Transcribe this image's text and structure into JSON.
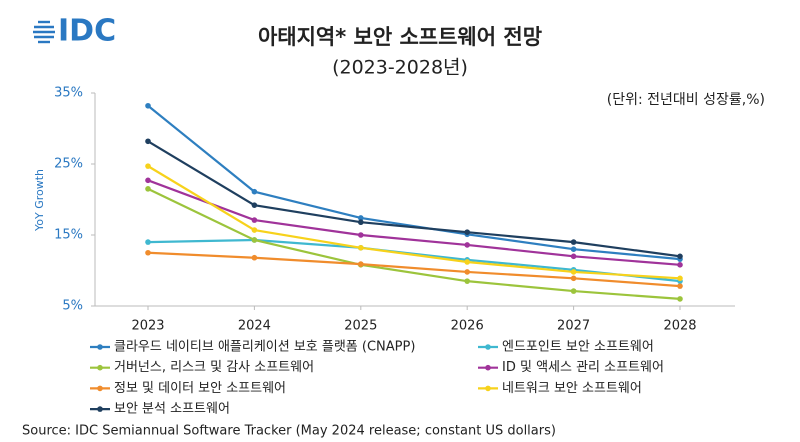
{
  "logo": "IDC",
  "chart_data": {
    "type": "line",
    "title": "아태지역* 보안 소프트웨어 전망",
    "subtitle": "(2023-2028년)",
    "unit_note": "(단위: 전년대비 성장률,%)",
    "y_label": "YoY Growth",
    "source": "Source:  IDC Semiannual Software Tracker (May 2024 release; constant US dollars)",
    "categories": [
      "2023",
      "2024",
      "2025",
      "2026",
      "2027",
      "2028"
    ],
    "ylim": [
      5,
      35
    ],
    "yticks": [
      {
        "value": 5,
        "label": "5%"
      },
      {
        "value": 15,
        "label": "15%"
      },
      {
        "value": 25,
        "label": "25%"
      },
      {
        "value": 35,
        "label": "35%"
      }
    ],
    "series": [
      {
        "name": "클라우드 네이티브 애플리케이션 보호 플랫폼 (CNAPP)",
        "color": "#2e7fc0",
        "values": [
          33.2,
          21.1,
          17.4,
          15.1,
          13,
          11.6
        ]
      },
      {
        "name": "엔드포인트 보안 소프트웨어",
        "color": "#3fb8d0",
        "values": [
          14,
          14.3,
          13.2,
          11.5,
          10.1,
          8.5
        ]
      },
      {
        "name": "거버넌스, 리스크 및 감사 소프트웨어",
        "color": "#9cc43c",
        "values": [
          21.5,
          14.3,
          10.8,
          8.5,
          7.1,
          6
        ]
      },
      {
        "name": "ID 및 액세스 관리 소프트웨어",
        "color": "#a0339a",
        "values": [
          22.7,
          17.1,
          15,
          13.6,
          12,
          10.8
        ]
      },
      {
        "name": "정보 및 데이터 보안 소프트웨어",
        "color": "#f08c2c",
        "values": [
          12.5,
          11.8,
          10.9,
          9.8,
          8.9,
          7.8
        ]
      },
      {
        "name": "네트워크 보안 소프트웨어",
        "color": "#f7d21b",
        "values": [
          24.7,
          15.7,
          13.2,
          11.2,
          9.8,
          8.9
        ]
      },
      {
        "name": "보안 분석 소프트웨어",
        "color": "#1f3f5f",
        "values": [
          28.2,
          19.2,
          16.8,
          15.4,
          14,
          12
        ]
      }
    ]
  }
}
